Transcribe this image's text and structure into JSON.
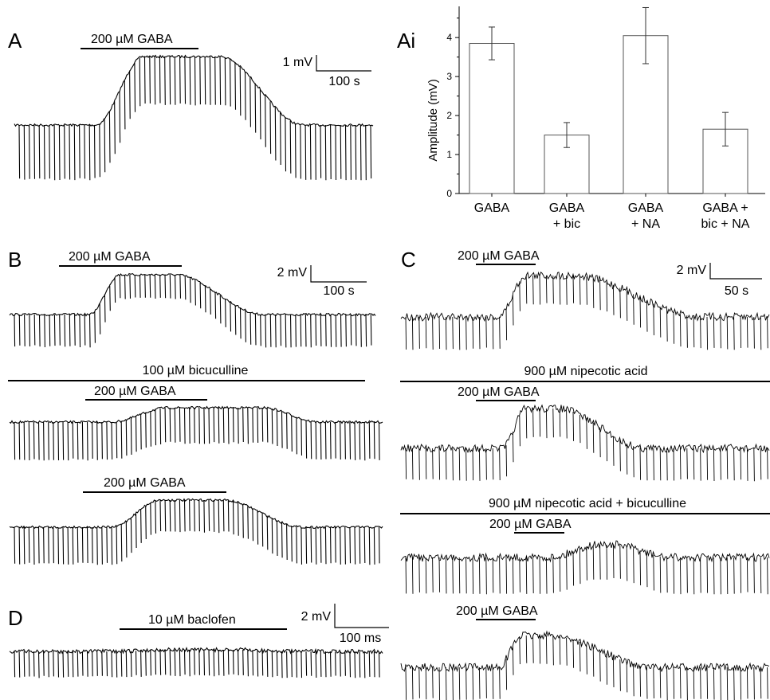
{
  "panels": {
    "A": {
      "label": "A",
      "drug": "200 µM GABA",
      "scale_v": "1 mV",
      "scale_t": "100 s"
    },
    "Ai": {
      "label": "Ai"
    },
    "B": {
      "label": "B",
      "drug1": "200 µM GABA",
      "scale_v": "2 mV",
      "scale_t": "100 s",
      "bath2": "100 µM bicuculline",
      "drug2": "200 µM GABA",
      "drug3": "200 µM GABA"
    },
    "C": {
      "label": "C",
      "drug1": "200 µM GABA",
      "scale_v": "2 mV",
      "scale_t": "50 s",
      "bath2": "900 µM nipecotic acid",
      "drug2": "200 µM GABA",
      "bath3": "900 µM nipecotic acid + bicuculline",
      "drug3": "200 µM GABA",
      "drug4": "200 µM GABA"
    },
    "D": {
      "label": "D",
      "drug": "10 µM baclofen",
      "scale_v": "2 mV",
      "scale_t": "100 ms"
    }
  },
  "chart_data": {
    "type": "bar",
    "categories": [
      [
        "GABA"
      ],
      [
        "GABA",
        "+ bic"
      ],
      [
        "GABA",
        "+ NA"
      ],
      [
        "GABA +",
        "bic + NA"
      ]
    ],
    "values": [
      3.85,
      1.5,
      4.05,
      1.65
    ],
    "errors": [
      0.42,
      0.32,
      0.72,
      0.43
    ],
    "ylabel": "Amplitude (mV)",
    "ylim": [
      0,
      4.8
    ],
    "yticks": [
      "0",
      "1",
      "2",
      "3",
      "4"
    ],
    "grid": false,
    "bar_fill": "#ffffff",
    "bar_stroke": "#555555"
  }
}
